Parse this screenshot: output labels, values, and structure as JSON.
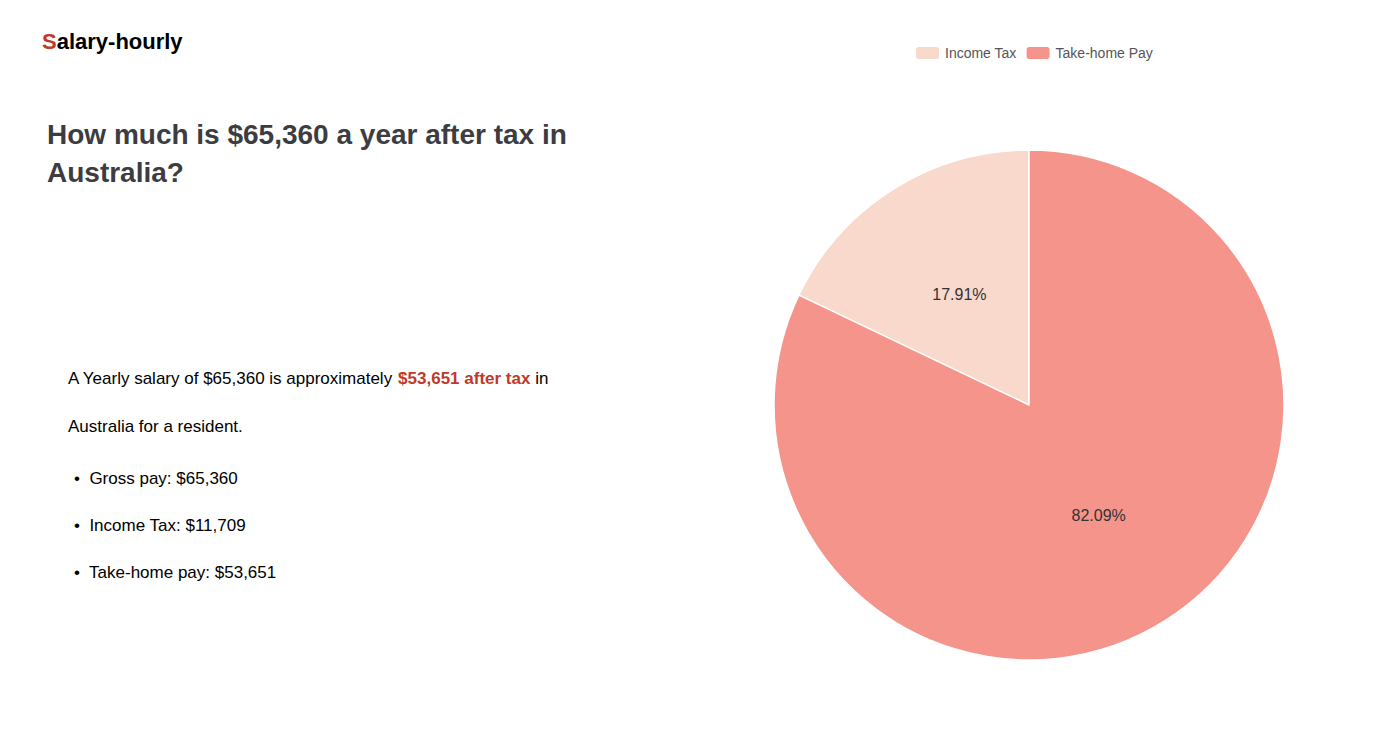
{
  "chart_data": {
    "type": "pie",
    "title": "How much is $65,360 a year after tax in\nAustralia?",
    "categories": [
      "Income Tax",
      "Take-home Pay"
    ],
    "values": [
      17.91,
      82.09
    ],
    "value_labels": [
      "17.91%",
      "82.09%"
    ],
    "colors": [
      "#f8d9cc",
      "#f4948a"
    ],
    "legend": "top",
    "data_labels": true,
    "annotations": [
      [
        {
          "text": "S",
          "color": "#c0392b"
        },
        {
          "text": "alary-hourly"
        }
      ],
      [
        {
          "text": "A Yearly salary of $65,360 is approximately "
        },
        {
          "text": "$53,651 after tax",
          "color": "#c0392b"
        },
        {
          "text": " in"
        }
      ],
      [
        {
          "text": "Australia for a resident."
        }
      ],
      [
        {
          "text": "•  Gross pay: $65,360"
        }
      ],
      [
        {
          "text": "•  Income Tax: $11,709"
        }
      ],
      [
        {
          "text": "•  Take-home pay: $53,651"
        }
      ]
    ]
  }
}
